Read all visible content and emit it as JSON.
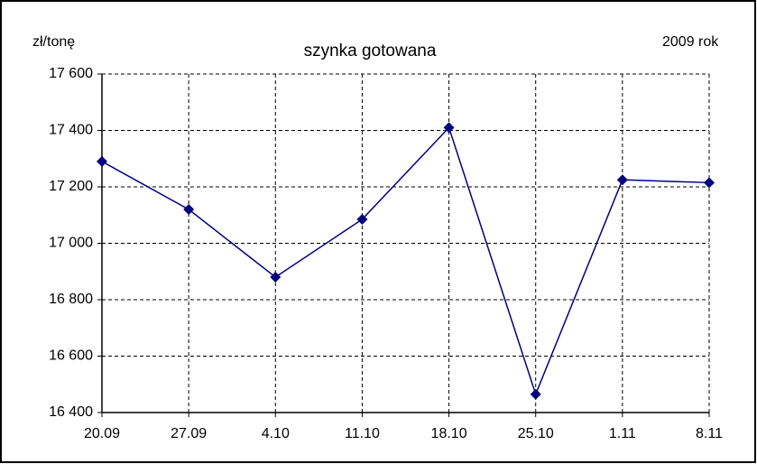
{
  "chart_data": {
    "type": "line",
    "title": "szynka gotowana",
    "ylabel": "zł/tonę",
    "annotation": "2009 rok",
    "categories": [
      "20.09",
      "27.09",
      "4.10",
      "11.10",
      "18.10",
      "25.10",
      "1.11",
      "8.11"
    ],
    "series": [
      {
        "name": "szynka gotowana",
        "color": "#000080",
        "values": [
          17290,
          17120,
          16880,
          17085,
          17410,
          16465,
          17225,
          17215
        ]
      }
    ],
    "ylim": [
      16400,
      17600
    ],
    "yticks": [
      {
        "value": 16400,
        "label": "16 400"
      },
      {
        "value": 16600,
        "label": "16 600"
      },
      {
        "value": 16800,
        "label": "16 800"
      },
      {
        "value": 17000,
        "label": "17 000"
      },
      {
        "value": 17200,
        "label": "17 200"
      },
      {
        "value": 17400,
        "label": "17 400"
      },
      {
        "value": 17600,
        "label": "17 600"
      }
    ],
    "grid": true
  }
}
